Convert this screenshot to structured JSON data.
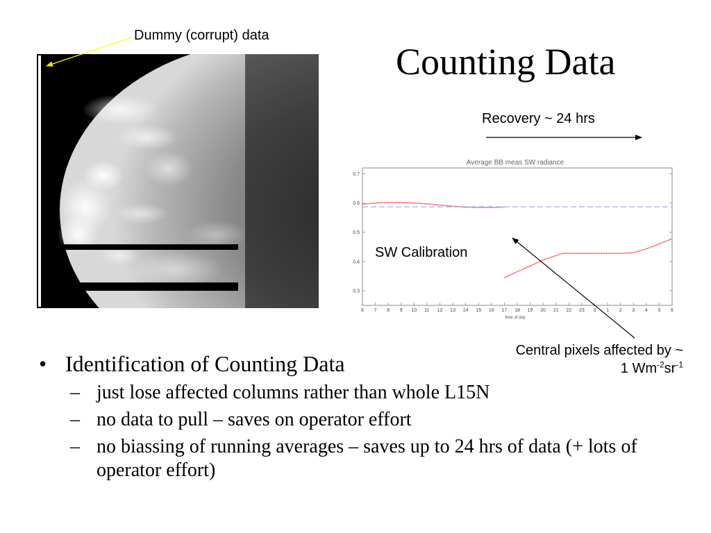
{
  "slide": {
    "title": "Counting Data",
    "dummy_label": "Dummy (corrupt) data",
    "recovery_label": "Recovery ~ 24 hrs",
    "sw_label": "SW Calibration",
    "central_label": {
      "line1": "Central pixels affected by ~",
      "line2_prefix": "1 Wm",
      "exp1": "-2",
      "mid": "sr",
      "exp2": "-1"
    },
    "image_subject": "earth-disc-satellite-image",
    "arrow_color": "#ffff00"
  },
  "bullets": {
    "main": "Identification of Counting Data",
    "marker": "•",
    "dash": "–",
    "subs": [
      "just lose affected columns rather than whole L15N",
      "no data to pull – saves on operator effort",
      "no biassing of running averages – saves up to 24 hrs of data (+ lots of operator effort)"
    ]
  },
  "chart_data": {
    "type": "line",
    "title": "Average BB meas SW radiance",
    "xlabel": "time of day",
    "ylabel": "",
    "x_ticks": [
      "6",
      "7",
      "8",
      "9",
      "10",
      "11",
      "12",
      "13",
      "14",
      "15",
      "16",
      "17",
      "18",
      "19",
      "20",
      "21",
      "22",
      "23",
      "0",
      "1",
      "2",
      "3",
      "4",
      "5",
      "6"
    ],
    "y_ticks": [
      "0.3",
      "0.4",
      "0.5",
      "0.6",
      "0.7"
    ],
    "ylim": [
      0.25,
      0.72
    ],
    "grid": false,
    "series": [
      {
        "name": "",
        "color": "#ff0000",
        "style": "dotted",
        "points": [
          [
            0,
            0.596
          ],
          [
            1,
            0.6
          ],
          [
            2,
            0.602
          ],
          [
            3,
            0.602
          ],
          [
            4,
            0.6
          ],
          [
            5,
            0.597
          ],
          [
            6,
            0.593
          ],
          [
            7,
            0.589
          ],
          [
            8,
            0.586
          ],
          [
            9,
            0.585
          ],
          [
            10,
            0.585
          ],
          [
            11,
            0.586
          ]
        ]
      },
      {
        "name": "",
        "color": "#ff0000",
        "style": "dotted",
        "points": [
          [
            11,
            0.345
          ],
          [
            12,
            0.365
          ],
          [
            13,
            0.385
          ],
          [
            14,
            0.405
          ],
          [
            15,
            0.42
          ],
          [
            15.5,
            0.428
          ],
          [
            16,
            0.428
          ],
          [
            17,
            0.428
          ],
          [
            18,
            0.428
          ],
          [
            19,
            0.428
          ],
          [
            20,
            0.428
          ],
          [
            21,
            0.43
          ],
          [
            22,
            0.443
          ],
          [
            23,
            0.46
          ],
          [
            24,
            0.478
          ]
        ]
      },
      {
        "name": "",
        "color": "#8899ee",
        "style": "dashed",
        "points": [
          [
            0,
            0.587
          ],
          [
            24,
            0.587
          ]
        ]
      }
    ]
  }
}
